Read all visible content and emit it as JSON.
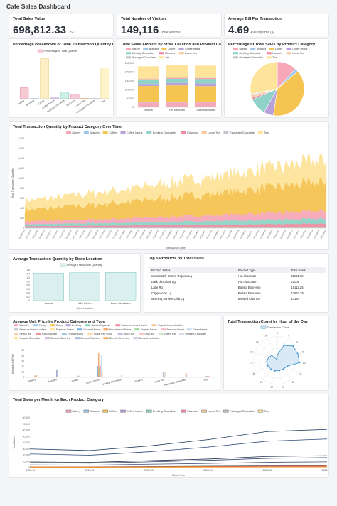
{
  "dashboard": {
    "title": "Cafe Sales Dashboard"
  },
  "kpis": [
    {
      "title": "Total Sales Value",
      "value": "698,812.33",
      "unit": "USD"
    },
    {
      "title": "Total Number of Visitors",
      "value": "149,116",
      "unit": "Total Visitors"
    },
    {
      "title": "Average Bill Per Transaction",
      "value": "4.69",
      "unit": "Average Bill ($)"
    }
  ],
  "colors": {
    "Bakery": "#f7a8b8",
    "Branded": "#9ec6e8",
    "Coffee": "#f5c451",
    "Coffee beans": "#b8a0d8",
    "Drinking Chocolate": "#8fd3c8",
    "Flavours": "#f08ca0",
    "Loose Tea": "#f6c89a",
    "Packaged Chocolate": "#c0c4cc",
    "Tea": "#fde49a"
  },
  "chart_data": [
    {
      "id": "pct_qty",
      "type": "bar",
      "title": "Percentage Breakdown of Total Transaction Quantity by Product Category",
      "legend": [
        "Percentage of Total Quantity"
      ],
      "categories": [
        "Bakery",
        "Branded",
        "Coffee",
        "Coffee beans",
        "Drinking Chocolate",
        "Flavours",
        "Loose Tea",
        "Packaged Chocolate",
        "Tea"
      ],
      "values": [
        10.9,
        0.3,
        39.4,
        0.8,
        6.4,
        4.4,
        0.5,
        0.3,
        30.4
      ],
      "ylim": [
        0,
        42
      ]
    },
    {
      "id": "sales_by_store",
      "type": "bar",
      "stacked": true,
      "title": "Total Sales Amount by Store Location and Product Category",
      "categories": [
        "Astoria",
        "Hell's Kitchen",
        "Lower Manhattan"
      ],
      "ylim": [
        0,
        250000
      ],
      "yticks": [
        "250,000",
        "200,000",
        "150,000",
        "100,000",
        "50,000",
        "0"
      ],
      "xlabel": "",
      "series": [
        {
          "name": "Bakery",
          "values": [
            27000,
            27500,
            27700
          ]
        },
        {
          "name": "Branded",
          "values": [
            4000,
            4900,
            4600
          ]
        },
        {
          "name": "Coffee",
          "values": [
            89700,
            92000,
            87800
          ]
        },
        {
          "name": "Coffee beans",
          "values": [
            11500,
            13700,
            15600
          ]
        },
        {
          "name": "Drinking Chocolate",
          "values": [
            23500,
            24000,
            24800
          ]
        },
        {
          "name": "Flavours",
          "values": [
            2800,
            2900,
            2800
          ]
        },
        {
          "name": "Loose Tea",
          "values": [
            3400,
            3900,
            3100
          ]
        },
        {
          "name": "Packaged Chocolate",
          "values": [
            1300,
            1400,
            1400
          ]
        },
        {
          "name": "Tea",
          "values": [
            69500,
            70800,
            69100
          ]
        }
      ]
    },
    {
      "id": "sales_pie",
      "type": "pie",
      "title": "Percentage of Total Sales by Product Category",
      "series": [
        {
          "name": "Bakery",
          "value": 11.8
        },
        {
          "name": "Branded",
          "value": 2.0
        },
        {
          "name": "Coffee",
          "value": 38.6
        },
        {
          "name": "Coffee beans",
          "value": 5.8
        },
        {
          "name": "Drinking Chocolate",
          "value": 10.3
        },
        {
          "name": "Flavours",
          "value": 1.2
        },
        {
          "name": "Loose Tea",
          "value": 1.6
        },
        {
          "name": "Packaged Chocolate",
          "value": 0.6
        },
        {
          "name": "Tea",
          "value": 28.1
        }
      ]
    },
    {
      "id": "qty_over_time",
      "type": "area",
      "stacked": true,
      "title": "Total Transaction Quantity by Product Category Over Time",
      "xlabel": "Transaction Date",
      "ylabel": "Total Transaction Quantity",
      "ylim": [
        0,
        1800
      ],
      "yticks": [
        "1,800",
        "1,600",
        "1,400",
        "1,200",
        "1,000",
        "800",
        "600",
        "400",
        "200",
        "0"
      ],
      "x_start": "2023-01-01",
      "x_end": "2023-06-30",
      "series_order": [
        "Bakery",
        "Branded",
        "Coffee",
        "Coffee beans",
        "Drinking Chocolate",
        "Flavours",
        "Loose Tea",
        "Packaged Chocolate",
        "Tea"
      ],
      "start_totals": {
        "Coffee": 230,
        "Tea": 180,
        "Bakery": 60,
        "Drinking Chocolate": 40,
        "Flavours": 25,
        "Coffee beans": 6,
        "Branded": 3,
        "Loose Tea": 4,
        "Packaged Chocolate": 2
      },
      "end_totals": {
        "Coffee": 580,
        "Tea": 440,
        "Bakery": 160,
        "Drinking Chocolate": 100,
        "Flavours": 60,
        "Coffee beans": 12,
        "Branded": 5,
        "Loose Tea": 8,
        "Packaged Chocolate": 4
      }
    },
    {
      "id": "avg_qty_store",
      "type": "bar",
      "title": "Average Transaction Quantity by Store Location",
      "legend": [
        "Average Transaction Quantity"
      ],
      "categories": [
        "Astoria",
        "Hell's Kitchen",
        "Lower Manhattan"
      ],
      "values": [
        1.44,
        1.46,
        1.48
      ],
      "xlabel": "Store Location",
      "ylim": [
        0,
        1.6
      ],
      "yticks": [
        "1.6",
        "1.4",
        "1.2",
        "1.0",
        "0.8",
        "0.6",
        "0.4",
        "0.2",
        "0"
      ]
    },
    {
      "id": "avg_unit_price",
      "type": "bar",
      "title": "Average Unit Price by Product Category and Type",
      "ylabel": "Average Unit Price",
      "categories": [
        "Bakery",
        "Branded",
        "Coffee",
        "Coffee beans",
        "Drinking Chocolate",
        "Flavours",
        "Loose Tea",
        "Packaged Chocolate",
        "Tea"
      ],
      "ylim": [
        0,
        50
      ],
      "yticks": [
        "50",
        "40",
        "30",
        "20",
        "10",
        "0"
      ],
      "legend": [
        "Biscotti",
        "Pastry",
        "Scone",
        "Drinking",
        "Barista Espresso",
        "Gourmet brewed coffee",
        "Organic brewed coffee",
        "Premium brewed coffee",
        "Espresso Beans",
        "Gourmet Beans",
        "House blend Beans",
        "Organic Beans",
        "Premium Beans",
        "Green beans",
        "Herbal tea",
        "Hot chocolate",
        "Regular syrup",
        "Sugar free syrup",
        "Black tea",
        "Chai tea",
        "Green tea",
        "Drinking Chocolate",
        "Organic Chocolate",
        "Brewed Black tea",
        "Brewed Chai tea",
        "Brewed Green tea",
        "Brewed herbal tea"
      ],
      "group_values": [
        [
          3.4,
          3.5,
          3.7
        ],
        [
          14.0,
          15.0
        ],
        [
          3.4,
          3.0,
          3.0,
          3.3
        ],
        [
          21.0,
          45.0,
          18.0,
          22.0,
          41.0,
          10.0
        ],
        [
          3.9
        ],
        [
          0.8,
          0.8
        ],
        [
          9.5,
          9.0,
          8.9,
          9.2
        ],
        [
          7.6,
          7.0
        ],
        [
          3.0,
          2.5,
          3.0,
          2.6
        ]
      ]
    },
    {
      "id": "hourly_radar",
      "type": "radar",
      "title": "Total Transaction Count by Hour of the Day",
      "legend": [
        "Transaction Count"
      ],
      "hours": [
        "6",
        "7",
        "8",
        "9",
        "10",
        "11",
        "12",
        "13",
        "14",
        "15",
        "16",
        "17",
        "18",
        "19",
        "20"
      ],
      "values": [
        4594,
        13428,
        17654,
        17764,
        18545,
        9766,
        8708,
        8714,
        8933,
        8979,
        9093,
        8745,
        7498,
        6092,
        603
      ],
      "rmax": 20000
    },
    {
      "id": "sales_by_month",
      "type": "line",
      "title": "Total Sales per Month for Each Product Category",
      "xlabel": "Month-Year",
      "ylabel": "Total Sales",
      "x": [
        "2023-01",
        "2023-02",
        "2023-03",
        "2023-04",
        "2023-05",
        "2023-06"
      ],
      "ylim": [
        0,
        90000
      ],
      "yticks": [
        "80,000",
        "70,000",
        "60,000",
        "50,000",
        "40,000",
        "30,000",
        "20,000",
        "10,000",
        "0"
      ],
      "series": [
        {
          "name": "Bakery",
          "values": [
            9100,
            8400,
            11200,
            13800,
            18000,
            19200
          ]
        },
        {
          "name": "Branded",
          "values": [
            1300,
            1200,
            1700,
            2200,
            2800,
            3000
          ]
        },
        {
          "name": "Coffee",
          "values": [
            30000,
            27500,
            34800,
            45000,
            58000,
            61400
          ]
        },
        {
          "name": "Coffee beans",
          "values": [
            4400,
            4000,
            5400,
            6700,
            8600,
            9300
          ]
        },
        {
          "name": "Drinking Chocolate",
          "values": [
            7800,
            7200,
            9300,
            11800,
            14900,
            16100
          ]
        },
        {
          "name": "Flavours",
          "values": [
            900,
            850,
            1100,
            1400,
            1750,
            1900
          ]
        },
        {
          "name": "Loose Tea",
          "values": [
            1200,
            1100,
            1450,
            1800,
            2300,
            2500
          ]
        },
        {
          "name": "Packaged Chocolate",
          "values": [
            450,
            420,
            540,
            680,
            860,
            940
          ]
        },
        {
          "name": "Tea",
          "values": [
            22000,
            20000,
            25500,
            33000,
            42500,
            46000
          ]
        }
      ]
    }
  ],
  "top5": {
    "title": "Top 5 Products by Total Sales",
    "headers": [
      "Product Detail",
      "Product Type",
      "Total Sales"
    ],
    "rows": [
      [
        "Sustainably Grown Organic Lg",
        "Hot chocolate",
        "21151.75"
      ],
      [
        "Dark chocolate Lg",
        "Hot chocolate",
        "21006"
      ],
      [
        "Latte Rg",
        "Barista Espresso",
        "19112.25"
      ],
      [
        "Cappuccino Lg",
        "Barista Espresso",
        "17641.75"
      ],
      [
        "Morning Sunrise Chai Lg",
        "Brewed Chai tea",
        "17384"
      ]
    ]
  }
}
